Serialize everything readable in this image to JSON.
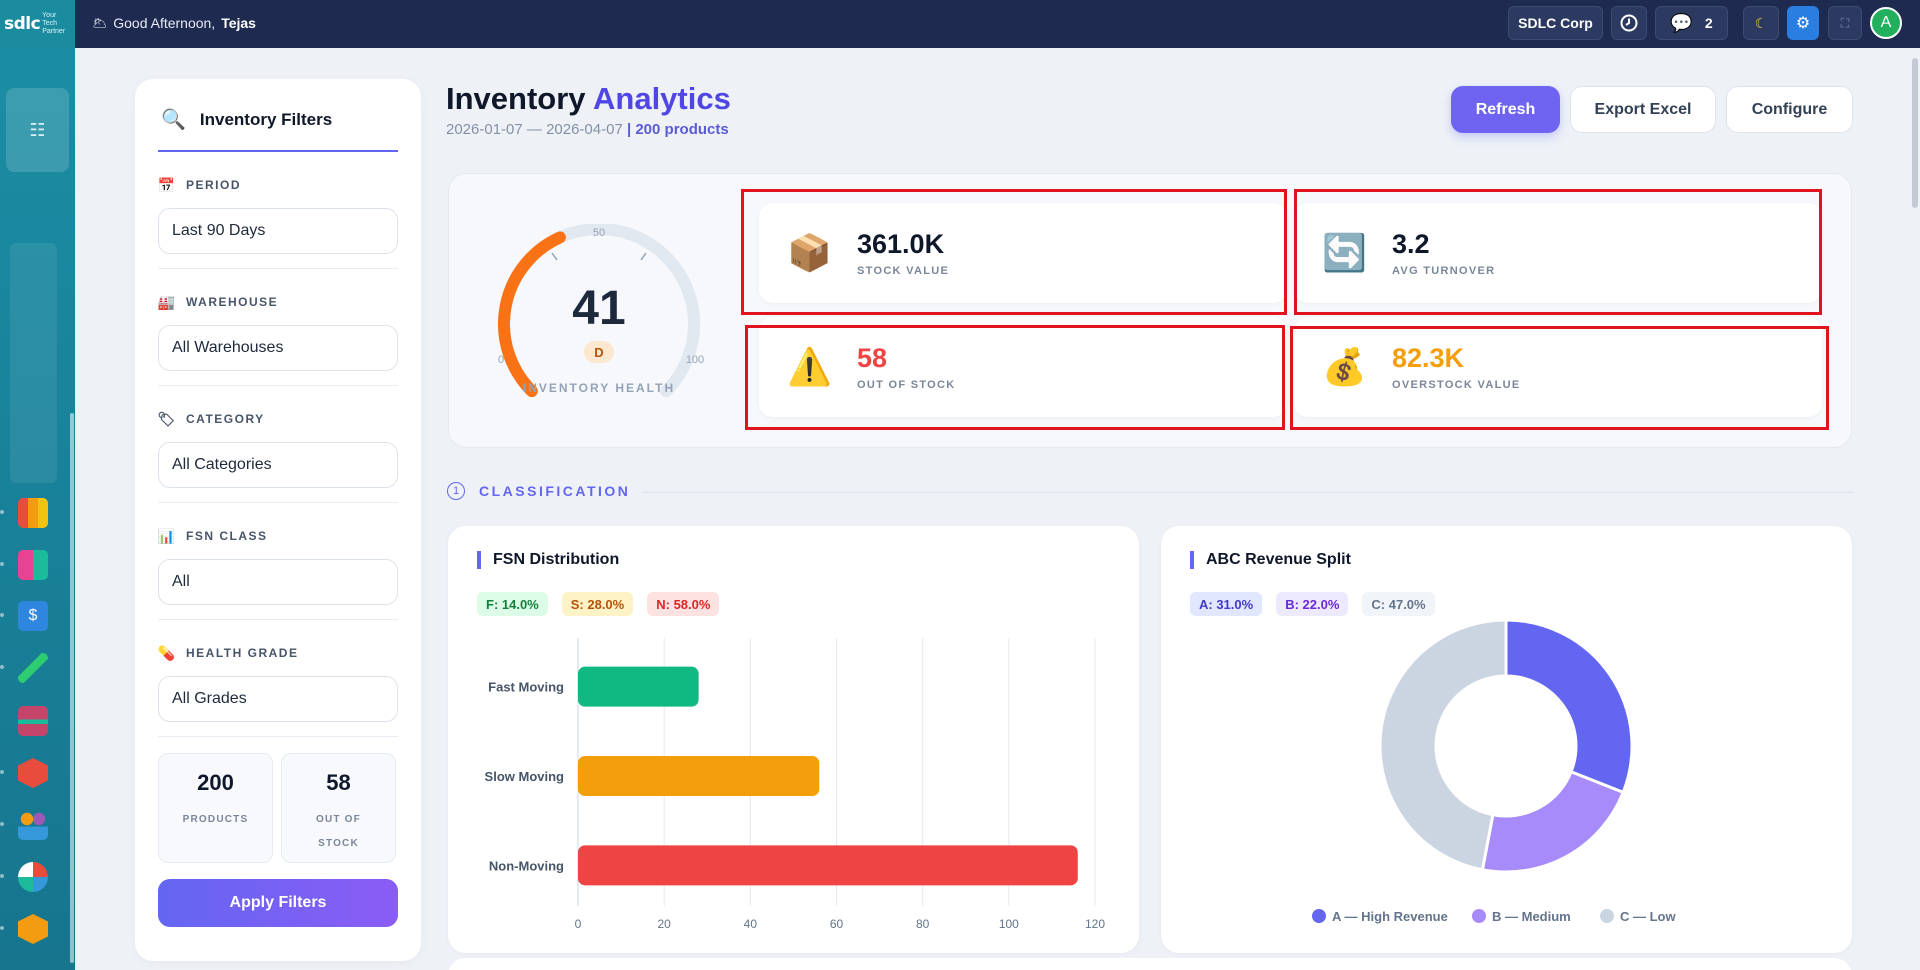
{
  "topbar": {
    "brand": "sdlc",
    "brand_tagline": "Your Tech Partner",
    "greeting_prefix": "Good Afternoon,",
    "user_name": "Tejas",
    "org": "SDLC Corp",
    "messages_count": "2",
    "avatar_letter": "A"
  },
  "filters": {
    "title": "Inventory Filters",
    "groups": [
      {
        "label": "PERIOD",
        "value": "Last 90 Days",
        "icon": "calendar-icon"
      },
      {
        "label": "WAREHOUSE",
        "value": "All Warehouses",
        "icon": "factory-icon"
      },
      {
        "label": "CATEGORY",
        "value": "All Categories",
        "icon": "tag-icon"
      },
      {
        "label": "FSN CLASS",
        "value": "All",
        "icon": "bar-chart-icon"
      },
      {
        "label": "HEALTH GRADE",
        "value": "All Grades",
        "icon": "pill-icon"
      }
    ],
    "stats": [
      {
        "value": "200",
        "label": "PRODUCTS"
      },
      {
        "value": "58",
        "label": "OUT OF STOCK"
      }
    ],
    "apply_label": "Apply Filters"
  },
  "header": {
    "title_main": "Inventory",
    "title_accent": "Analytics",
    "date_range": "2026-01-07 — 2026-04-07",
    "product_count": "| 200 products",
    "refresh": "Refresh",
    "export": "Export Excel",
    "configure": "Configure"
  },
  "health": {
    "score": "41",
    "score_value": 41,
    "grade": "D",
    "label": "INVENTORY HEALTH",
    "scale_min": "0",
    "scale_mid": "50",
    "scale_max": "100"
  },
  "kpis": [
    {
      "value": "361.0K",
      "label": "STOCK VALUE",
      "icon": "package-icon",
      "color": "#0f172a"
    },
    {
      "value": "3.2",
      "label": "AVG TURNOVER",
      "icon": "refresh-icon",
      "color": "#0f172a"
    },
    {
      "value": "58",
      "label": "OUT OF STOCK",
      "icon": "warning-icon",
      "color": "#ef4444"
    },
    {
      "value": "82.3K",
      "label": "OVERSTOCK VALUE",
      "icon": "money-bag-icon",
      "color": "#f59e0b"
    }
  ],
  "section": {
    "number": "1",
    "title": "CLASSIFICATION"
  },
  "fsn": {
    "title": "FSN Distribution",
    "pills": [
      "F: 14.0%",
      "S: 28.0%",
      "N: 58.0%"
    ]
  },
  "abc": {
    "title": "ABC Revenue Split",
    "pills": [
      "A: 31.0%",
      "B: 22.0%",
      "C: 47.0%"
    ]
  },
  "chart_data": [
    {
      "type": "bar",
      "orientation": "horizontal",
      "categories": [
        "Fast Moving",
        "Slow Moving",
        "Non-Moving"
      ],
      "values": [
        28,
        56,
        116
      ],
      "colors": [
        "#10b981",
        "#f59e0b",
        "#ef4444"
      ],
      "xlim": [
        0,
        120
      ],
      "xticks": [
        "0",
        "20",
        "40",
        "60",
        "80",
        "100",
        "120"
      ],
      "grid": true
    },
    {
      "type": "pie",
      "donut": true,
      "labels": [
        "A — High Revenue",
        "B — Medium",
        "C — Low"
      ],
      "values": [
        31,
        22,
        47
      ],
      "colors": [
        "#6366f1",
        "#a78bfa",
        "#cbd5e1"
      ],
      "legend": "bottom"
    }
  ]
}
